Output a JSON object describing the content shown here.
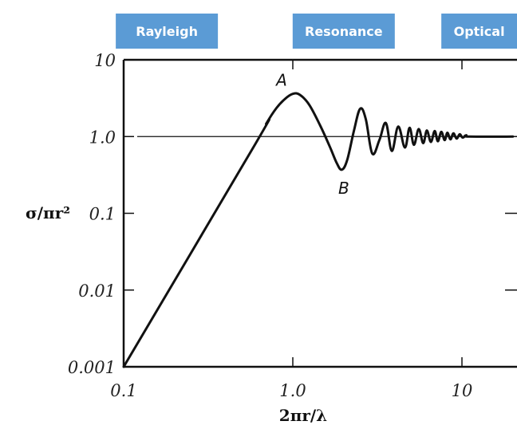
{
  "chart_data": {
    "type": "line",
    "x_scale": "log",
    "y_scale": "log",
    "xlim": [
      0.1,
      20
    ],
    "ylim": [
      0.001,
      10
    ],
    "x_ticks": [
      {
        "value": 0.1,
        "label": "0.1"
      },
      {
        "value": 1.0,
        "label": "1.0"
      },
      {
        "value": 10,
        "label": "10"
      }
    ],
    "y_ticks": [
      {
        "value": 10,
        "label": "10"
      },
      {
        "value": 1.0,
        "label": "1.0"
      },
      {
        "value": 0.1,
        "label": "0.1"
      },
      {
        "value": 0.01,
        "label": "0.01"
      },
      {
        "value": 0.001,
        "label": "0.001"
      }
    ],
    "xlabel": "2πr/λ",
    "ylabel": "σ/πr²",
    "reference_line": {
      "y": 1.0
    },
    "regimes": [
      {
        "label": "Rayleigh",
        "x": 0.18
      },
      {
        "label": "Resonance",
        "x": 2.0
      },
      {
        "label": "Optical",
        "x": 13
      }
    ],
    "annotations": [
      {
        "label": "A",
        "x": 1.0,
        "y": 3.6
      },
      {
        "label": "B",
        "x": 2.0,
        "y": 0.37
      }
    ],
    "series": [
      {
        "x": [
          0.1,
          0.6,
          0.7,
          0.8,
          0.9,
          1.0,
          1.1,
          1.25,
          1.45,
          1.65,
          1.82,
          1.95,
          2.1,
          2.3,
          2.5,
          2.7,
          2.95,
          3.25,
          3.55,
          3.85,
          4.2,
          4.6,
          4.9,
          5.2,
          5.55,
          5.9,
          6.2,
          6.55,
          6.9,
          7.2,
          7.55,
          7.9,
          8.2,
          8.55,
          8.9,
          9.3,
          9.7,
          10.1,
          10.6,
          11,
          20
        ],
        "y": [
          0.001,
          0.8,
          1.5,
          2.35,
          3.1,
          3.6,
          3.5,
          2.6,
          1.4,
          0.75,
          0.45,
          0.37,
          0.5,
          1.2,
          2.3,
          1.7,
          0.6,
          0.9,
          1.5,
          0.65,
          1.35,
          0.72,
          1.3,
          0.78,
          1.25,
          0.82,
          1.2,
          0.85,
          1.18,
          0.87,
          1.15,
          0.9,
          1.12,
          0.92,
          1.1,
          0.94,
          1.07,
          0.97,
          1.04,
          1.0,
          1.0
        ]
      }
    ]
  }
}
